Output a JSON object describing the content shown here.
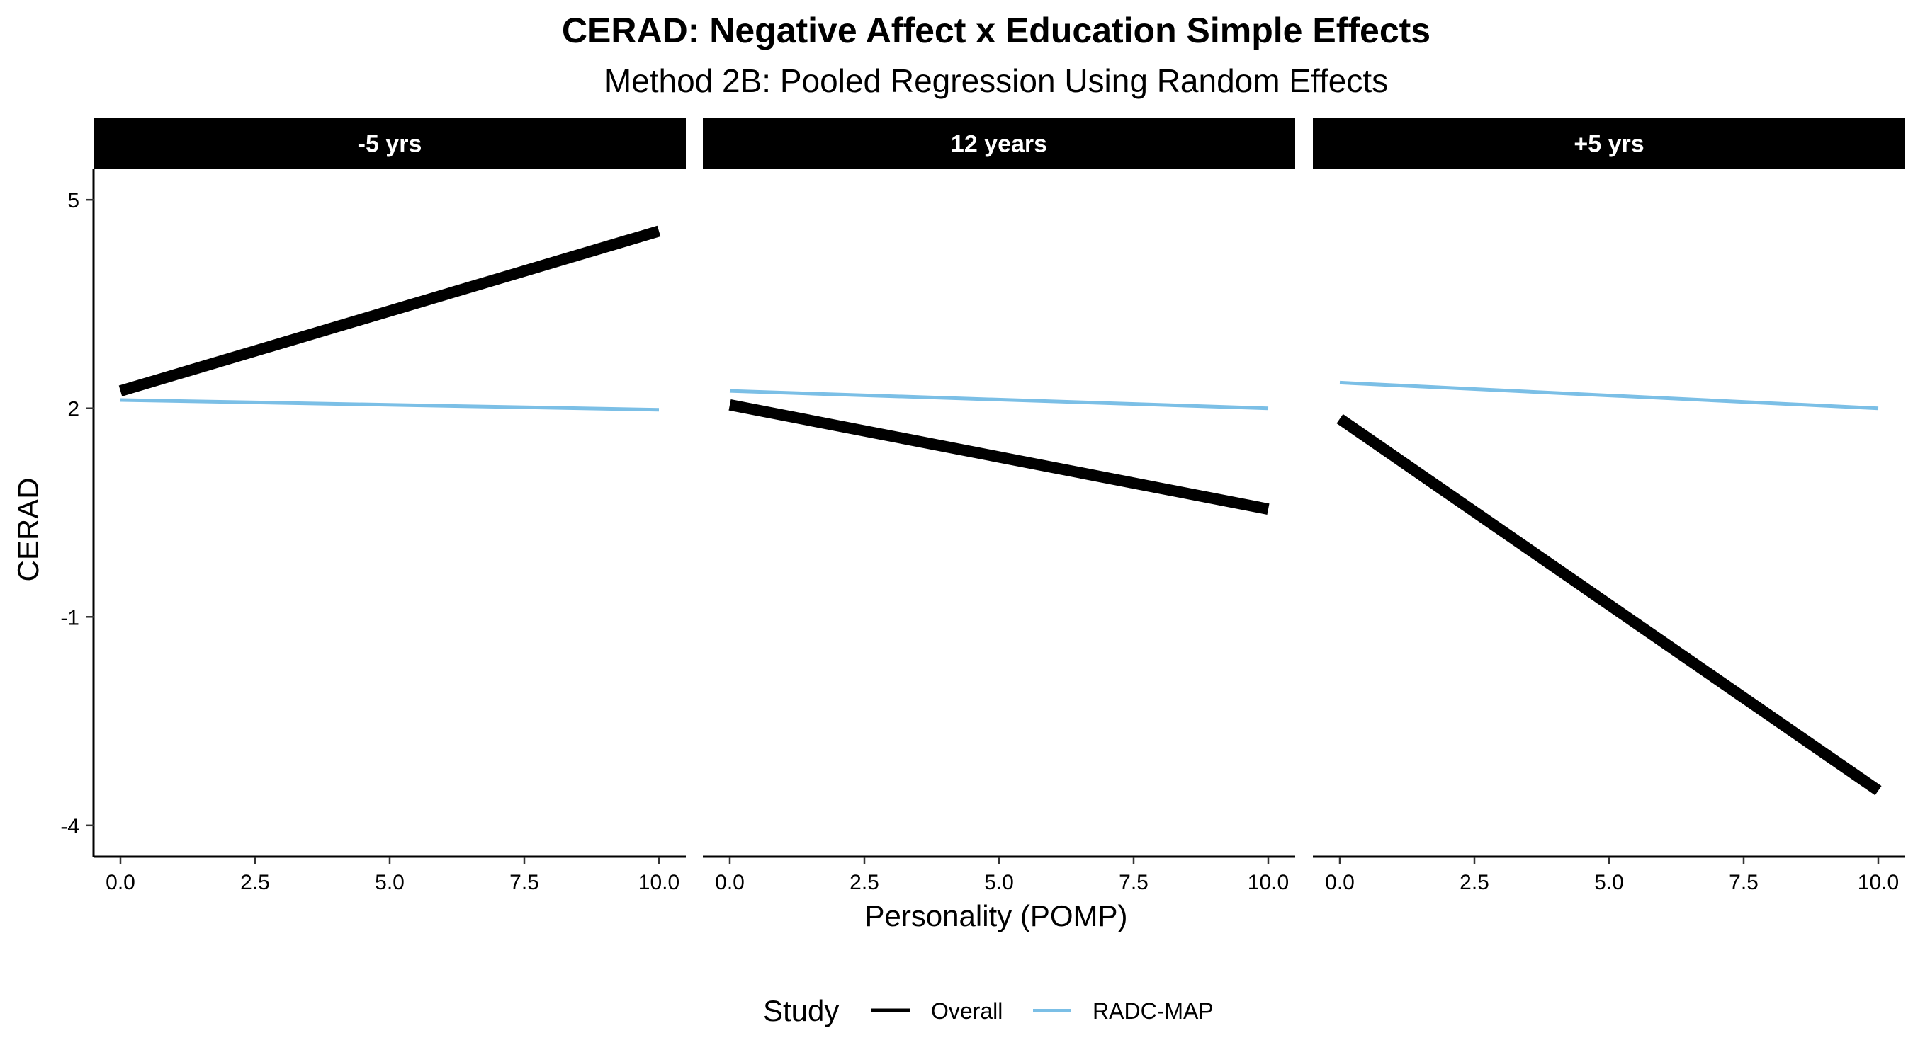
{
  "chart_data": {
    "type": "line",
    "title": "CERAD: Negative Affect x Education Simple Effects",
    "subtitle": "Method 2B: Pooled Regression Using Random Effects",
    "xlabel": "Personality (POMP)",
    "ylabel": "CERAD",
    "xlim": [
      -0.5,
      10.5
    ],
    "ylim": [
      -4.45,
      5.45
    ],
    "x_ticks": [
      0.0,
      2.5,
      5.0,
      7.5,
      10.0
    ],
    "x_tick_labels": [
      "0.0",
      "2.5",
      "5.0",
      "7.5",
      "10.0"
    ],
    "y_ticks": [
      5,
      2,
      -1,
      -4
    ],
    "y_tick_labels": [
      "5",
      "2",
      "-1",
      "-4"
    ],
    "legend": {
      "title": "Study",
      "position": "bottom",
      "entries": [
        {
          "label": "Overall",
          "color": "#000000"
        },
        {
          "label": "RADC-MAP",
          "color": "#7BBFE6"
        }
      ]
    },
    "grid": false,
    "facets": [
      {
        "label": "-5 yrs",
        "series": [
          {
            "name": "Overall",
            "x": [
              0,
              10
            ],
            "y": [
              2.25,
              4.55
            ]
          },
          {
            "name": "RADC-MAP",
            "x": [
              0,
              10
            ],
            "y": [
              2.12,
              1.98
            ]
          }
        ]
      },
      {
        "label": "12 years",
        "series": [
          {
            "name": "Overall",
            "x": [
              0,
              10
            ],
            "y": [
              2.05,
              0.55
            ]
          },
          {
            "name": "RADC-MAP",
            "x": [
              0,
              10
            ],
            "y": [
              2.25,
              2.0
            ]
          }
        ]
      },
      {
        "label": "+5 yrs",
        "series": [
          {
            "name": "Overall",
            "x": [
              0,
              10
            ],
            "y": [
              1.85,
              -3.5
            ]
          },
          {
            "name": "RADC-MAP",
            "x": [
              0,
              10
            ],
            "y": [
              2.37,
              2.0
            ]
          }
        ]
      }
    ]
  }
}
